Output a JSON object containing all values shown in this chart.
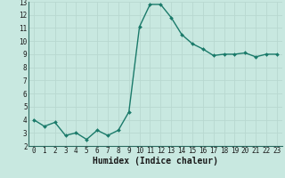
{
  "x": [
    0,
    1,
    2,
    3,
    4,
    5,
    6,
    7,
    8,
    9,
    10,
    11,
    12,
    13,
    14,
    15,
    16,
    17,
    18,
    19,
    20,
    21,
    22,
    23
  ],
  "y": [
    4.0,
    3.5,
    3.8,
    2.8,
    3.0,
    2.5,
    3.2,
    2.8,
    3.2,
    4.6,
    11.1,
    12.8,
    12.8,
    11.8,
    10.5,
    9.8,
    9.4,
    8.9,
    9.0,
    9.0,
    9.1,
    8.8,
    9.0,
    9.0
  ],
  "line_color": "#1a7a6a",
  "marker": "D",
  "marker_size": 2.0,
  "bg_color": "#c8e8e0",
  "grid_color": "#b8d8d0",
  "xlabel": "Humidex (Indice chaleur)",
  "ylim": [
    2,
    13
  ],
  "xlim": [
    -0.5,
    23.5
  ],
  "yticks": [
    2,
    3,
    4,
    5,
    6,
    7,
    8,
    9,
    10,
    11,
    12,
    13
  ],
  "xticks": [
    0,
    1,
    2,
    3,
    4,
    5,
    6,
    7,
    8,
    9,
    10,
    11,
    12,
    13,
    14,
    15,
    16,
    17,
    18,
    19,
    20,
    21,
    22,
    23
  ],
  "tick_fontsize": 5.5,
  "label_fontsize": 7.0,
  "line_width": 1.0
}
